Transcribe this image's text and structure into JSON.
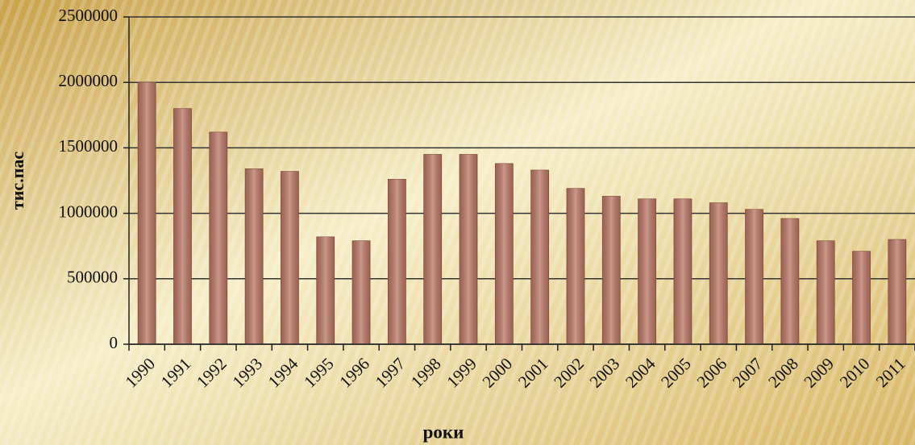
{
  "chart_data": {
    "type": "bar",
    "categories": [
      "1990",
      "1991",
      "1992",
      "1993",
      "1994",
      "1995",
      "1996",
      "1997",
      "1998",
      "1999",
      "2000",
      "2001",
      "2002",
      "2003",
      "2004",
      "2005",
      "2006",
      "2007",
      "2008",
      "2009",
      "2010",
      "2011"
    ],
    "values": [
      2000000,
      1800000,
      1620000,
      1340000,
      1320000,
      820000,
      790000,
      1260000,
      1450000,
      1450000,
      1380000,
      1330000,
      1190000,
      1130000,
      1110000,
      1110000,
      1080000,
      1030000,
      960000,
      790000,
      710000,
      800000
    ],
    "color": "#b97563",
    "xlabel": "роки",
    "ylabel": "тис.пас",
    "ylim": [
      0,
      2500000
    ],
    "yticks": [
      0,
      500000,
      1000000,
      1500000,
      2000000,
      2500000
    ],
    "grid": true
  }
}
